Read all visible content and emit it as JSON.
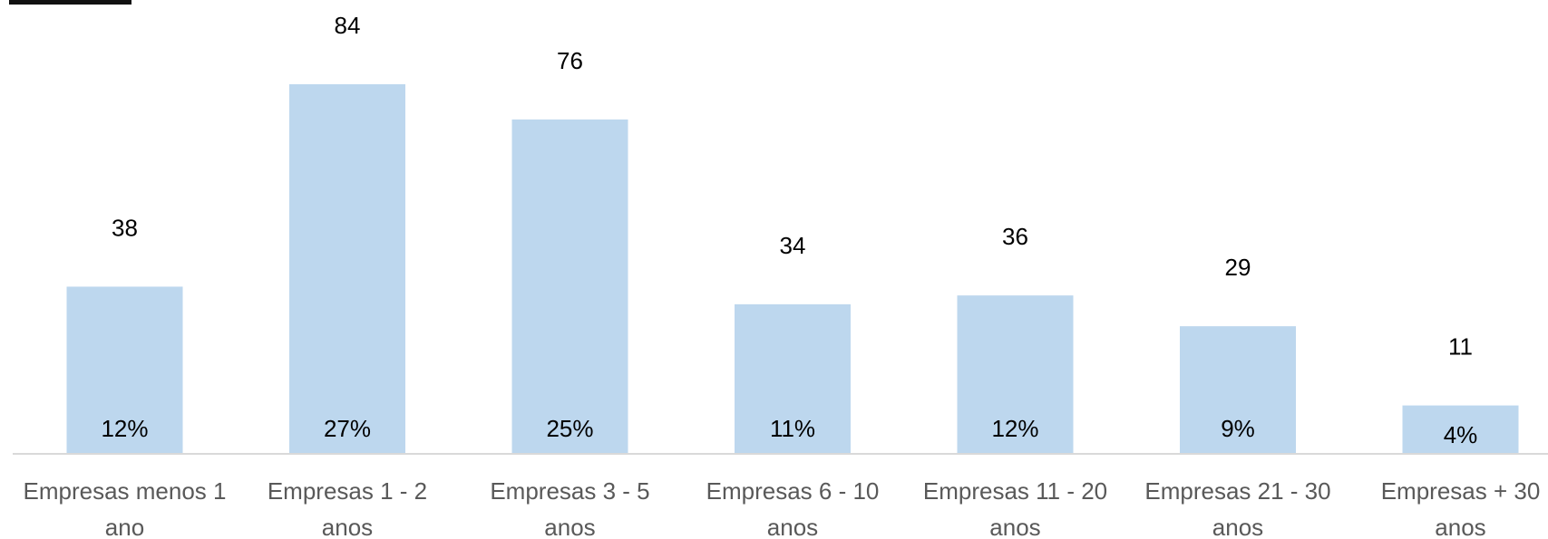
{
  "chart_data": {
    "type": "bar",
    "title": "",
    "xlabel": "",
    "ylabel": "",
    "ylim": [
      0,
      84
    ],
    "grid": false,
    "legend": "none",
    "categories": [
      [
        "Empresas menos 1",
        "ano"
      ],
      [
        "Empresas 1 - 2",
        "anos"
      ],
      [
        "Empresas 3 - 5",
        "anos"
      ],
      [
        "Empresas 6 - 10",
        "anos"
      ],
      [
        "Empresas 11 - 20",
        "anos"
      ],
      [
        "Empresas 21 - 30",
        "anos"
      ],
      [
        "Empresas + 30",
        "anos"
      ]
    ],
    "values": [
      38,
      84,
      76,
      34,
      36,
      29,
      11
    ],
    "percent_labels": [
      "12%",
      "27%",
      "25%",
      "11%",
      "12%",
      "9%",
      "4%"
    ]
  },
  "colors": {
    "bar": "#bdd7ee",
    "axis": "#d9d9d9",
    "value_text": "#000000",
    "category_text": "#595959"
  }
}
